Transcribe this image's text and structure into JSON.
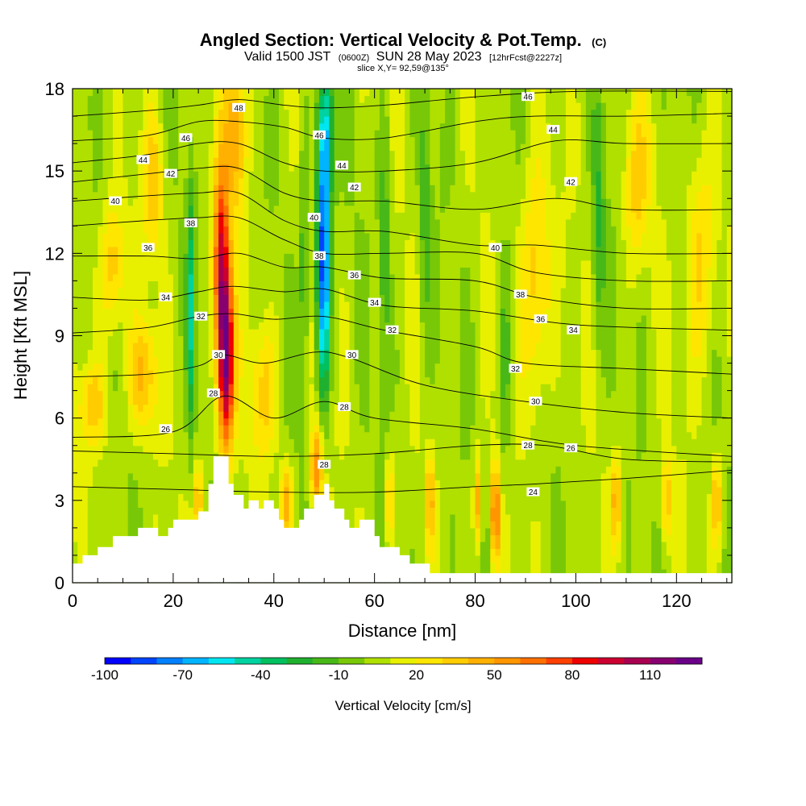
{
  "title": {
    "main": "Angled Section: Vertical Velocity & Pot.Temp.",
    "main_suffix": "(C)",
    "valid_prefix": "Valid 1500 JST",
    "valid_utc": "(0600Z)",
    "valid_date": "SUN 28 May 2023",
    "valid_fcst": "[12hrFcst@2227z]",
    "slice": "slice X,Y= 92,59@135°"
  },
  "chart_data": {
    "type": "heatmap",
    "xlabel": "Distance [nm]",
    "ylabel": "Height [Kft MSL]",
    "xlim": [
      0,
      131
    ],
    "ylim": [
      0,
      18
    ],
    "x_ticks": [
      "0",
      "20",
      "40",
      "60",
      "80",
      "100",
      "120"
    ],
    "x_tick_values": [
      0,
      20,
      40,
      60,
      80,
      100,
      120
    ],
    "y_ticks": [
      "0",
      "3",
      "6",
      "9",
      "12",
      "15",
      "18"
    ],
    "y_tick_values": [
      0,
      3,
      6,
      9,
      12,
      15,
      18
    ],
    "colorbar": {
      "title": "Vertical Velocity [cm/s]",
      "labels": [
        "-100",
        "-70",
        "-40",
        "-10",
        "20",
        "50",
        "80",
        "110"
      ],
      "label_values": [
        -100,
        -70,
        -40,
        -10,
        20,
        50,
        80,
        110
      ],
      "min": -100,
      "step": 10,
      "colors": [
        "#0000ff",
        "#0044ff",
        "#0080ff",
        "#00b4ff",
        "#00e6f0",
        "#00d2a0",
        "#00c060",
        "#20b030",
        "#48b818",
        "#78c808",
        "#b0e000",
        "#e8f000",
        "#ffe600",
        "#ffcc00",
        "#ffb000",
        "#ff9600",
        "#ff7000",
        "#ff4000",
        "#ee0000",
        "#cc0030",
        "#a80050",
        "#880070",
        "#6a0088"
      ]
    },
    "terrain_kft": [
      [
        0,
        0.7
      ],
      [
        2,
        0.7
      ],
      [
        2,
        1.0
      ],
      [
        5,
        1.0
      ],
      [
        5,
        1.3
      ],
      [
        8,
        1.3
      ],
      [
        8,
        1.7
      ],
      [
        13,
        1.7
      ],
      [
        13,
        2.0
      ],
      [
        15,
        2.0
      ],
      [
        15,
        2.0
      ],
      [
        17,
        2.0
      ],
      [
        17,
        1.7
      ],
      [
        19,
        1.7
      ],
      [
        19,
        2.0
      ],
      [
        20,
        2.0
      ],
      [
        20,
        2.3
      ],
      [
        25,
        2.3
      ],
      [
        25,
        2.6
      ],
      [
        27,
        2.6
      ],
      [
        27,
        3.6
      ],
      [
        28,
        3.6
      ],
      [
        28,
        4.6
      ],
      [
        31,
        4.6
      ],
      [
        31,
        3.6
      ],
      [
        32,
        3.6
      ],
      [
        32,
        3.2
      ],
      [
        34,
        3.2
      ],
      [
        34,
        2.7
      ],
      [
        35,
        2.7
      ],
      [
        35,
        3.0
      ],
      [
        37,
        3.0
      ],
      [
        37,
        2.7
      ],
      [
        38,
        2.7
      ],
      [
        38,
        3.0
      ],
      [
        40,
        3.0
      ],
      [
        40,
        2.7
      ],
      [
        41,
        2.7
      ],
      [
        41,
        2.3
      ],
      [
        42,
        2.3
      ],
      [
        42,
        2.0
      ],
      [
        45,
        2.0
      ],
      [
        45,
        2.3
      ],
      [
        46,
        2.3
      ],
      [
        46,
        2.7
      ],
      [
        48,
        2.7
      ],
      [
        48,
        3.2
      ],
      [
        50,
        3.2
      ],
      [
        50,
        3.6
      ],
      [
        51,
        3.6
      ],
      [
        51,
        3.0
      ],
      [
        52,
        3.0
      ],
      [
        52,
        2.7
      ],
      [
        54,
        2.7
      ],
      [
        54,
        2.3
      ],
      [
        55,
        2.3
      ],
      [
        55,
        2.0
      ],
      [
        57,
        2.0
      ],
      [
        57,
        2.3
      ],
      [
        60,
        2.3
      ],
      [
        60,
        1.7
      ],
      [
        61,
        1.7
      ],
      [
        61,
        1.3
      ],
      [
        65,
        1.3
      ],
      [
        65,
        1.0
      ],
      [
        67,
        1.0
      ],
      [
        67,
        0.7
      ],
      [
        71,
        0.7
      ],
      [
        71,
        0.35
      ],
      [
        131,
        0.35
      ]
    ],
    "theta_contours": [
      {
        "label": "24",
        "pts": [
          [
            0,
            3.5
          ],
          [
            20,
            3.4
          ],
          [
            40,
            3.3
          ],
          [
            60,
            3.3
          ],
          [
            80,
            3.5
          ],
          [
            92,
            3.6
          ],
          [
            110,
            3.8
          ],
          [
            131,
            4.1
          ]
        ]
      },
      {
        "label": "26",
        "pts": [
          [
            0,
            4.8
          ],
          [
            20,
            4.7
          ],
          [
            40,
            4.6
          ],
          [
            60,
            4.7
          ],
          [
            80,
            5.0
          ],
          [
            94,
            5.0
          ],
          [
            110,
            4.5
          ],
          [
            131,
            4.4
          ]
        ]
      },
      {
        "label": "28",
        "pts": [
          [
            0,
            5.3
          ],
          [
            20,
            5.5
          ],
          [
            30,
            6.8
          ],
          [
            40,
            6.0
          ],
          [
            50,
            6.6
          ],
          [
            60,
            6.0
          ],
          [
            80,
            5.6
          ],
          [
            100,
            5.0
          ],
          [
            131,
            4.6
          ]
        ]
      },
      {
        "label": "30",
        "pts": [
          [
            0,
            7.5
          ],
          [
            15,
            7.6
          ],
          [
            25,
            7.9
          ],
          [
            30,
            8.3
          ],
          [
            38,
            8.0
          ],
          [
            48,
            8.4
          ],
          [
            55,
            8.2
          ],
          [
            70,
            7.2
          ],
          [
            90,
            6.6
          ],
          [
            110,
            6.2
          ],
          [
            131,
            6.0
          ]
        ]
      },
      {
        "label": "32",
        "pts": [
          [
            0,
            9.1
          ],
          [
            15,
            9.3
          ],
          [
            25,
            9.7
          ],
          [
            32,
            9.8
          ],
          [
            40,
            9.6
          ],
          [
            50,
            9.7
          ],
          [
            62,
            9.2
          ],
          [
            80,
            8.6
          ],
          [
            90,
            8.0
          ],
          [
            110,
            7.8
          ],
          [
            131,
            7.6
          ]
        ]
      },
      {
        "label": "34",
        "pts": [
          [
            0,
            10.4
          ],
          [
            15,
            10.3
          ],
          [
            25,
            10.6
          ],
          [
            32,
            10.8
          ],
          [
            42,
            10.6
          ],
          [
            50,
            10.7
          ],
          [
            62,
            10.1
          ],
          [
            80,
            9.9
          ],
          [
            100,
            9.4
          ],
          [
            131,
            9.2
          ]
        ]
      },
      {
        "label": "36",
        "pts": [
          [
            0,
            11.9
          ],
          [
            15,
            11.9
          ],
          [
            25,
            11.8
          ],
          [
            33,
            12.0
          ],
          [
            42,
            11.5
          ],
          [
            50,
            11.5
          ],
          [
            62,
            11.1
          ],
          [
            80,
            11.0
          ],
          [
            92,
            10.4
          ],
          [
            110,
            10.0
          ],
          [
            131,
            10.0
          ]
        ]
      },
      {
        "label": "38",
        "pts": [
          [
            0,
            13.0
          ],
          [
            15,
            13.2
          ],
          [
            25,
            13.3
          ],
          [
            33,
            13.3
          ],
          [
            42,
            12.5
          ],
          [
            50,
            12.0
          ],
          [
            62,
            12.0
          ],
          [
            80,
            12.0
          ],
          [
            92,
            11.3
          ],
          [
            110,
            11.0
          ],
          [
            131,
            11.0
          ]
        ]
      },
      {
        "label": "40",
        "pts": [
          [
            0,
            13.9
          ],
          [
            15,
            14.1
          ],
          [
            25,
            14.2
          ],
          [
            33,
            14.2
          ],
          [
            42,
            13.2
          ],
          [
            50,
            12.8
          ],
          [
            62,
            12.8
          ],
          [
            80,
            12.3
          ],
          [
            92,
            12.3
          ],
          [
            110,
            12.0
          ],
          [
            131,
            12.0
          ]
        ]
      },
      {
        "label": "42",
        "pts": [
          [
            0,
            14.6
          ],
          [
            15,
            14.9
          ],
          [
            25,
            15.1
          ],
          [
            33,
            15.1
          ],
          [
            42,
            14.2
          ],
          [
            50,
            13.9
          ],
          [
            62,
            13.9
          ],
          [
            80,
            13.6
          ],
          [
            96,
            14.0
          ],
          [
            110,
            13.6
          ],
          [
            131,
            13.6
          ]
        ]
      },
      {
        "label": "44",
        "pts": [
          [
            0,
            15.3
          ],
          [
            15,
            15.6
          ],
          [
            25,
            16.0
          ],
          [
            33,
            16.0
          ],
          [
            42,
            15.3
          ],
          [
            50,
            15.0
          ],
          [
            62,
            15.0
          ],
          [
            80,
            15.3
          ],
          [
            96,
            16.1
          ],
          [
            110,
            16.0
          ],
          [
            131,
            16.0
          ]
        ]
      },
      {
        "label": "46",
        "pts": [
          [
            0,
            16.1
          ],
          [
            15,
            16.3
          ],
          [
            25,
            16.8
          ],
          [
            33,
            16.8
          ],
          [
            42,
            16.6
          ],
          [
            50,
            16.2
          ],
          [
            62,
            16.2
          ],
          [
            80,
            16.8
          ],
          [
            92,
            17.0
          ],
          [
            110,
            17.0
          ],
          [
            131,
            17.1
          ]
        ]
      },
      {
        "label": "48",
        "pts": [
          [
            0,
            17.0
          ],
          [
            15,
            17.2
          ],
          [
            25,
            17.4
          ],
          [
            33,
            17.6
          ],
          [
            42,
            17.4
          ],
          [
            50,
            17.3
          ],
          [
            62,
            17.4
          ],
          [
            80,
            17.7
          ],
          [
            100,
            17.9
          ],
          [
            131,
            17.9
          ]
        ]
      }
    ],
    "contour_labels": [
      {
        "text": "48",
        "x": 33,
        "y": 17.3
      },
      {
        "text": "46",
        "x": 22.5,
        "y": 16.2
      },
      {
        "text": "44",
        "x": 14,
        "y": 15.4
      },
      {
        "text": "42",
        "x": 19.5,
        "y": 14.9
      },
      {
        "text": "40",
        "x": 8.5,
        "y": 13.9
      },
      {
        "text": "38",
        "x": 23.5,
        "y": 13.1
      },
      {
        "text": "36",
        "x": 15,
        "y": 12.2
      },
      {
        "text": "34",
        "x": 18.5,
        "y": 10.4
      },
      {
        "text": "32",
        "x": 25.5,
        "y": 9.7
      },
      {
        "text": "30",
        "x": 29,
        "y": 8.3
      },
      {
        "text": "28",
        "x": 28,
        "y": 6.9
      },
      {
        "text": "26",
        "x": 18.5,
        "y": 5.6
      },
      {
        "text": "46",
        "x": 49,
        "y": 16.3
      },
      {
        "text": "44",
        "x": 53.5,
        "y": 15.2
      },
      {
        "text": "42",
        "x": 56,
        "y": 14.4
      },
      {
        "text": "40",
        "x": 48,
        "y": 13.3
      },
      {
        "text": "38",
        "x": 49,
        "y": 11.9
      },
      {
        "text": "36",
        "x": 56,
        "y": 11.2
      },
      {
        "text": "34",
        "x": 60,
        "y": 10.2
      },
      {
        "text": "32",
        "x": 63.5,
        "y": 9.2
      },
      {
        "text": "30",
        "x": 55.5,
        "y": 8.3
      },
      {
        "text": "28",
        "x": 54,
        "y": 6.4
      },
      {
        "text": "28",
        "x": 50,
        "y": 4.3
      },
      {
        "text": "46",
        "x": 90.5,
        "y": 17.7
      },
      {
        "text": "44",
        "x": 95.5,
        "y": 16.5
      },
      {
        "text": "42",
        "x": 99,
        "y": 14.6
      },
      {
        "text": "40",
        "x": 84,
        "y": 12.2
      },
      {
        "text": "38",
        "x": 89,
        "y": 10.5
      },
      {
        "text": "36",
        "x": 93,
        "y": 9.6
      },
      {
        "text": "34",
        "x": 99.5,
        "y": 9.2
      },
      {
        "text": "32",
        "x": 88,
        "y": 7.8
      },
      {
        "text": "30",
        "x": 92,
        "y": 6.6
      },
      {
        "text": "28",
        "x": 90.5,
        "y": 5.0
      },
      {
        "text": "26",
        "x": 99,
        "y": 4.9
      },
      {
        "text": "24",
        "x": 91.5,
        "y": 3.3
      }
    ],
    "velocity_features": [
      {
        "x": 30.5,
        "y": 8.0,
        "sx": 1.6,
        "sy": 3.2,
        "v": 110
      },
      {
        "x": 29.5,
        "y": 11.8,
        "sx": 1.5,
        "sy": 3.5,
        "v": 80
      },
      {
        "x": 32.5,
        "y": 16.5,
        "sx": 2.2,
        "sy": 3.0,
        "v": 45
      },
      {
        "x": 49.8,
        "y": 11.8,
        "sx": 1.3,
        "sy": 4.6,
        "v": -95
      },
      {
        "x": 50.5,
        "y": 16.5,
        "sx": 1.6,
        "sy": 2.5,
        "v": -45
      },
      {
        "x": 48.5,
        "y": 4.2,
        "sx": 1.3,
        "sy": 1.6,
        "v": 55
      },
      {
        "x": 92,
        "y": 11.0,
        "sx": 3.0,
        "sy": 4.5,
        "v": 35
      },
      {
        "x": 84,
        "y": 2.5,
        "sx": 0.8,
        "sy": 1.8,
        "v": 70
      },
      {
        "x": 80.5,
        "y": 3.0,
        "sx": 0.8,
        "sy": 1.6,
        "v": 45
      },
      {
        "x": 71,
        "y": 3.0,
        "sx": 0.8,
        "sy": 1.6,
        "v": 40
      },
      {
        "x": 63,
        "y": 3.0,
        "sx": 0.8,
        "sy": 1.6,
        "v": 40
      },
      {
        "x": 42.5,
        "y": 3.0,
        "sx": 1.2,
        "sy": 1.3,
        "v": 45
      },
      {
        "x": 25,
        "y": 3.0,
        "sx": 1.0,
        "sy": 1.3,
        "v": 40
      },
      {
        "x": 8,
        "y": 11.5,
        "sx": 2.5,
        "sy": 2.5,
        "v": 35
      },
      {
        "x": 16,
        "y": 14.5,
        "sx": 2.0,
        "sy": 2.5,
        "v": 30
      },
      {
        "x": 23.5,
        "y": 10.0,
        "sx": 0.8,
        "sy": 4.5,
        "v": -40
      },
      {
        "x": 46,
        "y": 12.0,
        "sx": 0.9,
        "sy": 4.5,
        "v": -25
      },
      {
        "x": 62,
        "y": 12.0,
        "sx": 1.2,
        "sy": 5.0,
        "v": -25
      },
      {
        "x": 70,
        "y": 13.0,
        "sx": 1.1,
        "sy": 5.0,
        "v": -20
      },
      {
        "x": 86,
        "y": 8.0,
        "sx": 1.2,
        "sy": 4.0,
        "v": -20
      },
      {
        "x": 104.5,
        "y": 13.0,
        "sx": 1.2,
        "sy": 4.5,
        "v": -25
      },
      {
        "x": 112,
        "y": 14.5,
        "sx": 2.5,
        "sy": 3.0,
        "v": 30
      },
      {
        "x": 125,
        "y": 12.0,
        "sx": 3.0,
        "sy": 4.0,
        "v": 30
      },
      {
        "x": 108,
        "y": 3.0,
        "sx": 1.0,
        "sy": 1.6,
        "v": 40
      },
      {
        "x": 118,
        "y": 3.0,
        "sx": 1.0,
        "sy": 1.6,
        "v": 35
      },
      {
        "x": 128,
        "y": 3.0,
        "sx": 1.0,
        "sy": 1.6,
        "v": 40
      },
      {
        "x": 4,
        "y": 6.5,
        "sx": 3.0,
        "sy": 1.5,
        "v": 30
      },
      {
        "x": 14,
        "y": 7.5,
        "sx": 3.0,
        "sy": 2.0,
        "v": 35
      },
      {
        "x": 38,
        "y": 7.0,
        "sx": 2.5,
        "sy": 2.5,
        "v": 30
      }
    ]
  }
}
